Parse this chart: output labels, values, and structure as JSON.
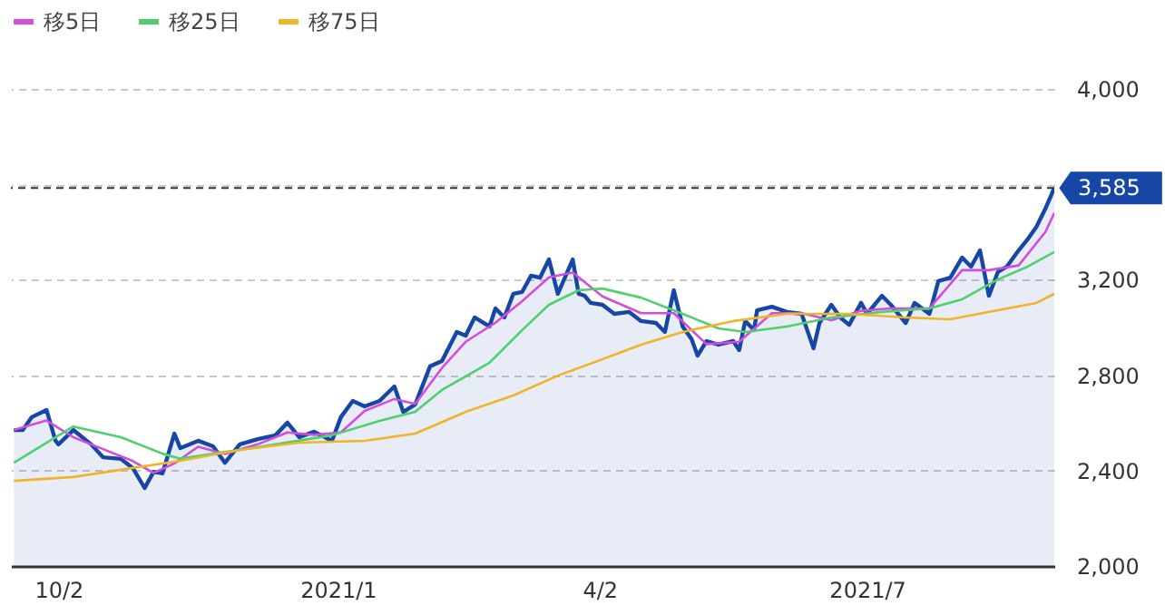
{
  "chart_data": {
    "type": "line",
    "xlim": [
      "2020-09-16",
      "2021-09-02"
    ],
    "xticks": [
      {
        "value": "2020-10-02",
        "label": "10/2"
      },
      {
        "value": "2021-01-04",
        "label": "2021/1"
      },
      {
        "value": "2021-04-02",
        "label": "4/2"
      },
      {
        "value": "2021-07-01",
        "label": "2021/7"
      }
    ],
    "ylim": [
      2000,
      4000
    ],
    "yticks": [
      {
        "value": 2000,
        "label": "2,000"
      },
      {
        "value": 2400,
        "label": "2,400"
      },
      {
        "value": 2800,
        "label": "2,800"
      },
      {
        "value": 3200,
        "label": "3,200"
      },
      {
        "value": 3600,
        "label": null
      },
      {
        "value": 4000,
        "label": "4,000"
      }
    ],
    "grid": "y",
    "legend": "top left",
    "ref_lines": [
      {
        "axis": "y",
        "value": 3585,
        "label": "3,585",
        "color": "#333333",
        "line_style": "dashed"
      }
    ],
    "series": [
      {
        "type": "area",
        "color": "#1747a6",
        "x": [
          "2020-09-17",
          "2020-09-20",
          "2020-09-23",
          "2020-09-28",
          "2020-10-01",
          "2020-10-02",
          "2020-10-07",
          "2020-10-13",
          "2020-10-17",
          "2020-10-23",
          "2020-10-27",
          "2020-10-31",
          "2020-11-03",
          "2020-11-06",
          "2020-11-10",
          "2020-11-12",
          "2020-11-18",
          "2020-11-23",
          "2020-11-27",
          "2020-12-02",
          "2020-12-08",
          "2020-12-14",
          "2020-12-18",
          "2020-12-22",
          "2020-12-27",
          "2021-01-02",
          "2021-01-05",
          "2021-01-09",
          "2021-01-13",
          "2021-01-18",
          "2021-01-23",
          "2021-01-26",
          "2021-01-30",
          "2021-02-04",
          "2021-02-08",
          "2021-02-13",
          "2021-02-16",
          "2021-02-19",
          "2021-02-24",
          "2021-02-26",
          "2021-03-01",
          "2021-03-04",
          "2021-03-07",
          "2021-03-10",
          "2021-03-13",
          "2021-03-16",
          "2021-03-19",
          "2021-03-24",
          "2021-03-26",
          "2021-03-28",
          "2021-03-30",
          "2021-04-03",
          "2021-04-07",
          "2021-04-12",
          "2021-04-16",
          "2021-04-21",
          "2021-04-24",
          "2021-04-27",
          "2021-04-30",
          "2021-05-03",
          "2021-05-05",
          "2021-05-08",
          "2021-05-12",
          "2021-05-17",
          "2021-05-19",
          "2021-05-21",
          "2021-05-24",
          "2021-05-25",
          "2021-05-30",
          "2021-06-04",
          "2021-06-09",
          "2021-06-13",
          "2021-06-15",
          "2021-06-19",
          "2021-06-22",
          "2021-06-25",
          "2021-06-29",
          "2021-07-01",
          "2021-07-06",
          "2021-07-09",
          "2021-07-14",
          "2021-07-17",
          "2021-07-22",
          "2021-07-25",
          "2021-07-29",
          "2021-08-02",
          "2021-08-05",
          "2021-08-08",
          "2021-08-11",
          "2021-08-14",
          "2021-08-17",
          "2021-08-21",
          "2021-08-24",
          "2021-08-27",
          "2021-08-30",
          "2021-09-02"
        ],
        "values": [
          2570,
          2570,
          2624,
          2654,
          2525,
          2510,
          2570,
          2510,
          2456,
          2449,
          2411,
          2327,
          2395,
          2388,
          2555,
          2494,
          2525,
          2502,
          2433,
          2510,
          2532,
          2548,
          2601,
          2540,
          2563,
          2525,
          2624,
          2692,
          2669,
          2692,
          2753,
          2646,
          2677,
          2837,
          2859,
          2981,
          2966,
          3042,
          3004,
          3080,
          3042,
          3141,
          3149,
          3217,
          3209,
          3285,
          3141,
          3285,
          3141,
          3133,
          3103,
          3095,
          3057,
          3065,
          3027,
          3019,
          2981,
          3156,
          3004,
          2951,
          2882,
          2943,
          2928,
          2943,
          2905,
          3027,
          2989,
          3072,
          3087,
          3065,
          3057,
          2913,
          3019,
          3095,
          3042,
          3011,
          3103,
          3057,
          3133,
          3095,
          3019,
          3103,
          3057,
          3194,
          3209,
          3293,
          3255,
          3323,
          3133,
          3232,
          3255,
          3323,
          3369,
          3422,
          3498,
          3585
        ]
      },
      {
        "name": "移5日",
        "color": "#d24ddf",
        "x": [
          "2020-09-17",
          "2020-09-28",
          "2020-10-07",
          "2020-10-17",
          "2020-10-27",
          "2020-11-03",
          "2020-11-10",
          "2020-11-18",
          "2020-11-27",
          "2020-12-08",
          "2020-12-18",
          "2020-12-27",
          "2021-01-05",
          "2021-01-13",
          "2021-01-23",
          "2021-01-30",
          "2021-02-08",
          "2021-02-16",
          "2021-02-26",
          "2021-03-07",
          "2021-03-16",
          "2021-03-24",
          "2021-04-03",
          "2021-04-16",
          "2021-04-27",
          "2021-05-08",
          "2021-05-19",
          "2021-05-30",
          "2021-06-09",
          "2021-06-19",
          "2021-06-29",
          "2021-07-09",
          "2021-07-22",
          "2021-08-02",
          "2021-08-11",
          "2021-08-21",
          "2021-08-30",
          "2021-09-02"
        ],
        "values": [
          2570,
          2610,
          2540,
          2490,
          2440,
          2390,
          2430,
          2500,
          2470,
          2510,
          2560,
          2550,
          2560,
          2650,
          2700,
          2680,
          2830,
          2940,
          3020,
          3110,
          3210,
          3230,
          3130,
          3060,
          3060,
          2930,
          2940,
          3060,
          3060,
          3030,
          3070,
          3080,
          3080,
          3240,
          3240,
          3260,
          3400,
          3480
        ]
      },
      {
        "name": "移25日",
        "color": "#4fcf6e",
        "x": [
          "2020-09-17",
          "2020-10-07",
          "2020-10-23",
          "2020-11-06",
          "2020-11-12",
          "2020-12-02",
          "2020-12-14",
          "2021-01-02",
          "2021-01-18",
          "2021-01-30",
          "2021-02-08",
          "2021-02-24",
          "2021-03-07",
          "2021-03-16",
          "2021-03-26",
          "2021-04-03",
          "2021-04-16",
          "2021-04-30",
          "2021-05-12",
          "2021-05-21",
          "2021-06-04",
          "2021-06-19",
          "2021-07-06",
          "2021-07-22",
          "2021-08-02",
          "2021-08-14",
          "2021-08-24",
          "2021-09-02"
        ],
        "values": [
          2433,
          2585,
          2540,
          2471,
          2450,
          2487,
          2510,
          2548,
          2608,
          2646,
          2738,
          2852,
          2989,
          3095,
          3156,
          3163,
          3125,
          3057,
          2996,
          2981,
          3004,
          3042,
          3065,
          3080,
          3118,
          3201,
          3255,
          3316
        ]
      },
      {
        "name": "移75日",
        "color": "#f0b429",
        "x": [
          "2020-09-17",
          "2020-10-07",
          "2020-10-27",
          "2020-11-12",
          "2020-12-02",
          "2020-12-22",
          "2021-01-13",
          "2021-01-30",
          "2021-02-16",
          "2021-03-04",
          "2021-03-19",
          "2021-04-03",
          "2021-04-16",
          "2021-04-30",
          "2021-05-17",
          "2021-06-04",
          "2021-06-25",
          "2021-07-14",
          "2021-07-29",
          "2021-08-14",
          "2021-08-27",
          "2021-09-02"
        ],
        "values": [
          2357,
          2373,
          2411,
          2441,
          2487,
          2517,
          2525,
          2555,
          2646,
          2715,
          2798,
          2867,
          2928,
          2981,
          3027,
          3057,
          3057,
          3042,
          3034,
          3072,
          3103,
          3141
        ]
      }
    ]
  }
}
